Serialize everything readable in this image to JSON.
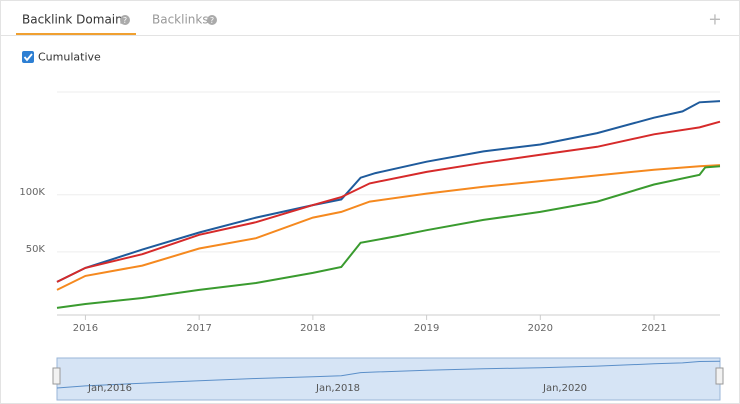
{
  "tabs": [
    "Backlink Domains",
    "Backlinks"
  ],
  "checkbox": "Cumulative",
  "navigator": {
    "labels": [
      "Jan,2016",
      "Jan,2018",
      "Jan,2020"
    ]
  },
  "chart_data": {
    "type": "line",
    "xlim": [
      2015.75,
      2021.58
    ],
    "xticks": [
      2016,
      2017,
      2018,
      2019,
      2020,
      2021
    ],
    "ylim": [
      0,
      190000
    ],
    "yticks": [
      {
        "value": 50000,
        "label": "50K"
      },
      {
        "value": 100000,
        "label": "100K"
      }
    ],
    "grid": true,
    "series": [
      {
        "color": "#1f5b9c",
        "x": [
          2015.75,
          2016,
          2016.5,
          2017,
          2017.5,
          2018,
          2018.25,
          2018.42,
          2018.55,
          2019,
          2019.5,
          2020,
          2020.5,
          2021,
          2021.25,
          2021.4,
          2021.58
        ],
        "values": [
          23700,
          36000,
          52000,
          67000,
          80000,
          91000,
          96000,
          115000,
          119000,
          129000,
          138000,
          144000,
          154000,
          167500,
          173000,
          181000,
          182000
        ]
      },
      {
        "color": "#d62a2a",
        "x": [
          2015.75,
          2016,
          2016.5,
          2017,
          2017.5,
          2018,
          2018.25,
          2018.5,
          2019,
          2019.5,
          2020,
          2020.5,
          2021,
          2021.4,
          2021.58
        ],
        "values": [
          23700,
          36000,
          48000,
          65000,
          76000,
          91000,
          98000,
          110000,
          120000,
          128000,
          135000,
          142000,
          153000,
          159000,
          164000
        ]
      },
      {
        "color": "#f5891f",
        "x": [
          2015.75,
          2016,
          2016.5,
          2017,
          2017.5,
          2018,
          2018.25,
          2018.5,
          2019,
          2019.5,
          2020,
          2020.5,
          2021,
          2021.4,
          2021.58
        ],
        "values": [
          16700,
          29000,
          38000,
          53000,
          62000,
          80000,
          85000,
          94000,
          101000,
          107000,
          112000,
          117000,
          122000,
          125000,
          126000
        ]
      },
      {
        "color": "#3a9b2f",
        "x": [
          2015.75,
          2016,
          2016.5,
          2017,
          2017.5,
          2018,
          2018.25,
          2018.42,
          2018.75,
          2019,
          2019.5,
          2020,
          2020.5,
          2021,
          2021.4,
          2021.45,
          2021.58
        ],
        "values": [
          1000,
          4400,
          9600,
          16700,
          22800,
          31600,
          36800,
          58000,
          64000,
          69000,
          78000,
          85000,
          94000,
          109000,
          117500,
          124000,
          125000
        ]
      }
    ]
  }
}
